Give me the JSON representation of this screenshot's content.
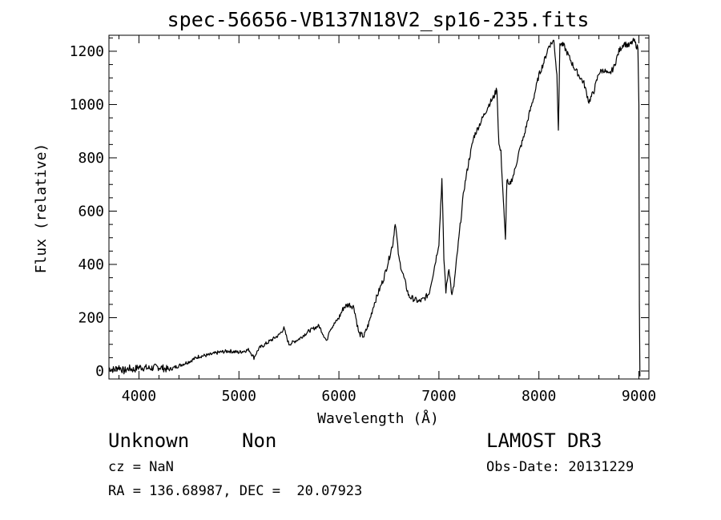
{
  "chart_data": {
    "type": "line",
    "title": "spec-56656-VB137N18V2_sp16-235.fits",
    "xlabel": "Wavelength (Å)",
    "ylabel": "Flux (relative)",
    "xlim": [
      3700,
      9100
    ],
    "ylim": [
      -30,
      1260
    ],
    "xticks": [
      4000,
      5000,
      6000,
      7000,
      8000,
      9000
    ],
    "xtick_labels": [
      "4000",
      "5000",
      "6000",
      "7000",
      "8000",
      "9000"
    ],
    "yticks": [
      0,
      200,
      400,
      600,
      800,
      1000,
      1200
    ],
    "ytick_labels": [
      "0",
      "200",
      "400",
      "600",
      "800",
      "1000",
      "1200"
    ],
    "grid": false,
    "series": [
      {
        "name": "flux",
        "x": [
          3700,
          3750,
          3800,
          3850,
          3900,
          3950,
          4000,
          4100,
          4200,
          4300,
          4400,
          4500,
          4600,
          4700,
          4800,
          4900,
          5000,
          5100,
          5150,
          5200,
          5300,
          5400,
          5450,
          5500,
          5600,
          5700,
          5800,
          5880,
          5900,
          6000,
          6050,
          6100,
          6150,
          6200,
          6250,
          6300,
          6350,
          6400,
          6450,
          6500,
          6540,
          6563,
          6600,
          6650,
          6700,
          6750,
          6800,
          6850,
          6900,
          6950,
          7000,
          7030,
          7050,
          7070,
          7100,
          7130,
          7150,
          7200,
          7250,
          7300,
          7350,
          7400,
          7450,
          7500,
          7550,
          7580,
          7600,
          7620,
          7650,
          7665,
          7680,
          7700,
          7750,
          7800,
          7850,
          7900,
          7950,
          8000,
          8050,
          8100,
          8150,
          8180,
          8195,
          8210,
          8250,
          8300,
          8350,
          8400,
          8450,
          8500,
          8550,
          8600,
          8650,
          8700,
          8750,
          8800,
          8850,
          8900,
          8950,
          8990,
          9000,
          9005,
          9010
        ],
        "y": [
          10,
          5,
          15,
          0,
          10,
          5,
          15,
          10,
          15,
          5,
          20,
          35,
          55,
          60,
          70,
          75,
          70,
          80,
          50,
          85,
          110,
          135,
          160,
          100,
          120,
          150,
          170,
          110,
          150,
          200,
          240,
          250,
          240,
          140,
          130,
          180,
          250,
          300,
          350,
          420,
          480,
          560,
          420,
          350,
          280,
          270,
          260,
          270,
          290,
          380,
          480,
          720,
          420,
          300,
          390,
          280,
          320,
          500,
          680,
          790,
          880,
          920,
          960,
          1000,
          1030,
          1060,
          850,
          820,
          600,
          490,
          720,
          690,
          740,
          820,
          880,
          960,
          1030,
          1110,
          1160,
          1220,
          1240,
          1110,
          910,
          1230,
          1220,
          1180,
          1140,
          1110,
          1080,
          1010,
          1050,
          1120,
          1130,
          1110,
          1140,
          1200,
          1230,
          1220,
          1240,
          1210,
          1000,
          250,
          -20
        ]
      }
    ]
  },
  "info": {
    "object_class": "Unknown",
    "object_subclass": "Non",
    "survey": "LAMOST DR3",
    "cz": "cz = NaN",
    "obs_date": "Obs-Date: 20131229",
    "coords": "RA = 136.68987, DEC =  20.07923"
  }
}
